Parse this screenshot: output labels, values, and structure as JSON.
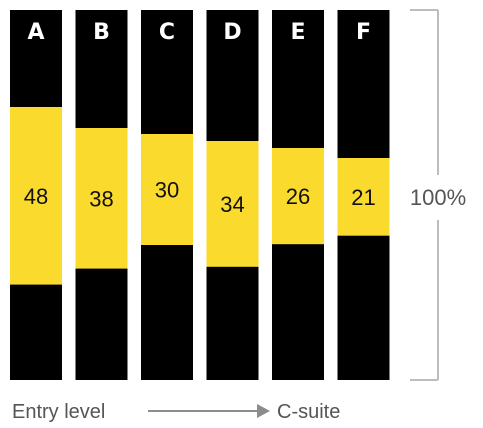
{
  "colors": {
    "bar_background": "#000000",
    "highlight": "#FBDA2E",
    "text_dark": "#111111",
    "text_gray": "#555555",
    "rule": "#BDBDBD",
    "arrow": "#8C8C8C"
  },
  "scale_label": "100%",
  "footer": {
    "start_label": "Entry level",
    "end_label": "C-suite"
  },
  "chart_data": {
    "type": "bar",
    "title": "",
    "categories": [
      "A",
      "B",
      "C",
      "D",
      "E",
      "F"
    ],
    "values": [
      48,
      38,
      30,
      34,
      26,
      21
    ],
    "value_labels": [
      "48",
      "38",
      "30",
      "34",
      "26",
      "21"
    ],
    "ylim": [
      0,
      100
    ],
    "xlabel": "",
    "ylabel": ""
  }
}
